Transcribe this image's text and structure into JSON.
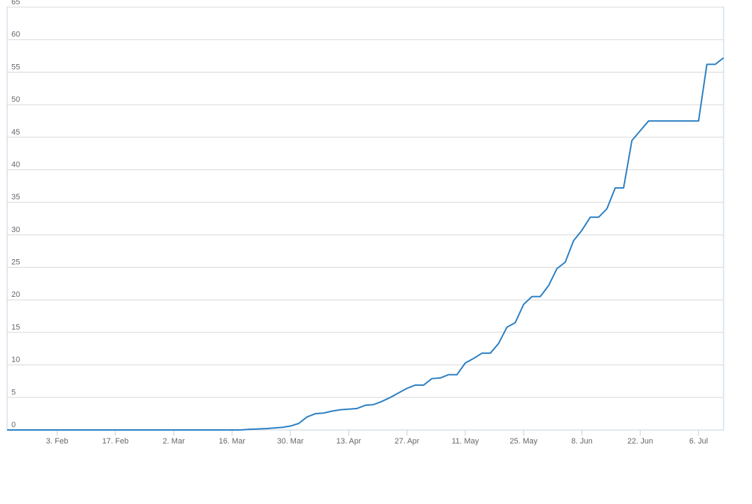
{
  "chart_data": {
    "type": "line",
    "color": "#2b7fc3",
    "grid": true,
    "ylim": [
      0,
      65
    ],
    "yticks": [
      0,
      5,
      10,
      15,
      20,
      25,
      30,
      35,
      40,
      45,
      50,
      55,
      60,
      65
    ],
    "categories": [
      null,
      null,
      null,
      null,
      null,
      null,
      "3. Feb",
      null,
      null,
      null,
      null,
      null,
      null,
      "17. Feb",
      null,
      null,
      null,
      null,
      null,
      null,
      "2. Mar",
      null,
      null,
      null,
      null,
      null,
      null,
      "16. Mar",
      null,
      null,
      null,
      null,
      null,
      null,
      "30. Mar",
      null,
      null,
      null,
      null,
      null,
      null,
      "13. Apr",
      null,
      null,
      null,
      null,
      null,
      null,
      "27. Apr",
      null,
      null,
      null,
      null,
      null,
      null,
      "11. May",
      null,
      null,
      null,
      null,
      null,
      null,
      "25. May",
      null,
      null,
      null,
      null,
      null,
      null,
      "8. Jun",
      null,
      null,
      null,
      null,
      null,
      null,
      "22. Jun",
      null,
      null,
      null,
      null,
      null,
      null,
      "6. Jul",
      null,
      null,
      null
    ],
    "values": [
      0,
      0,
      0,
      0,
      0,
      0,
      0,
      0,
      0,
      0,
      0,
      0,
      0,
      0,
      0,
      0,
      0,
      0,
      0,
      0,
      0,
      0,
      0,
      0,
      0,
      0,
      0,
      0,
      0,
      0.1,
      0.15,
      0.2,
      0.3,
      0.4,
      0.6,
      1.0,
      2.0,
      2.5,
      2.6,
      2.9,
      3.1,
      3.2,
      3.3,
      3.8,
      3.9,
      4.4,
      5.0,
      5.7,
      6.4,
      6.9,
      6.9,
      7.9,
      8.0,
      8.5,
      8.5,
      10.3,
      11.0,
      11.8,
      11.8,
      13.3,
      15.8,
      16.5,
      19.3,
      20.5,
      20.5,
      22.2,
      24.8,
      25.8,
      29.1,
      30.7,
      32.7,
      32.7,
      34,
      37.2,
      37.2,
      44.5,
      46.0,
      47.5,
      47.5,
      47.5,
      47.5,
      47.5,
      47.5,
      47.5,
      56.2,
      56.2,
      57.2
    ]
  }
}
